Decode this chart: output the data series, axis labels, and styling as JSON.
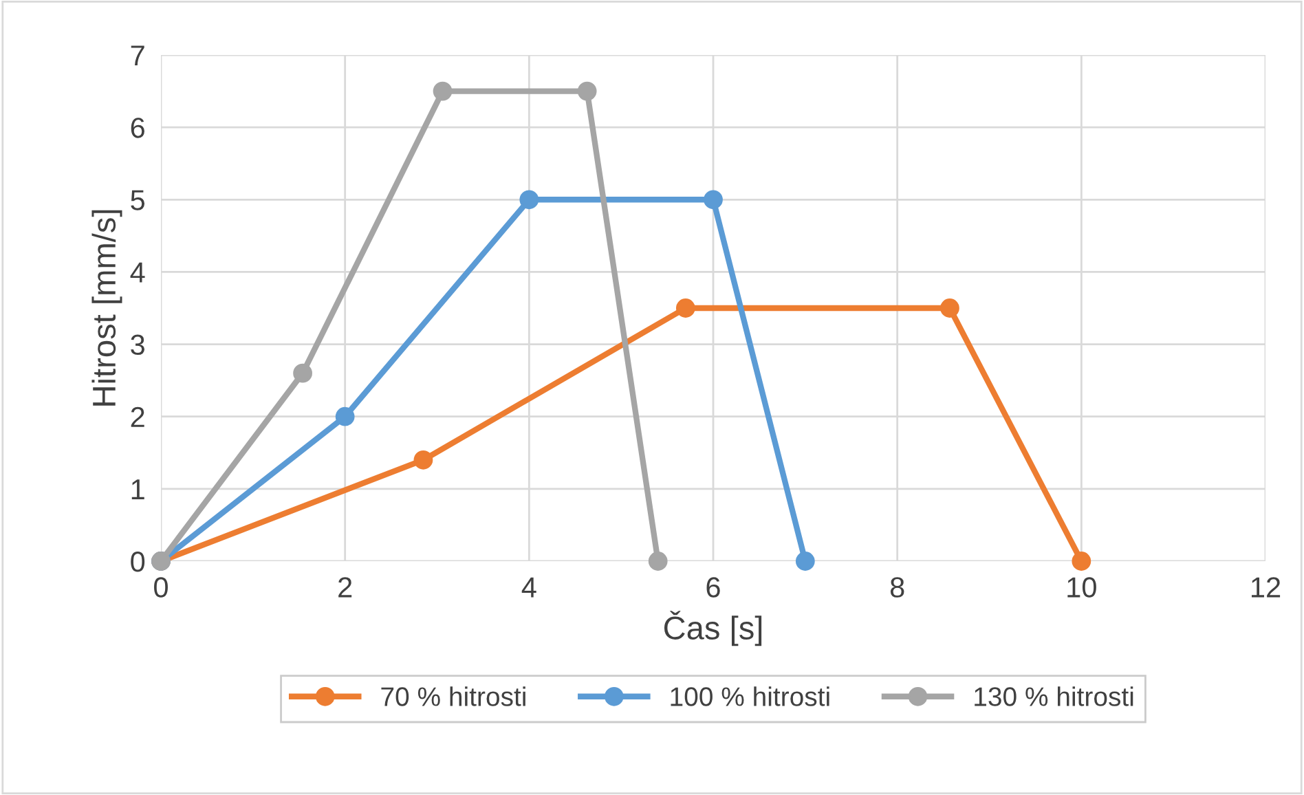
{
  "chart_data": {
    "type": "line",
    "xlabel": "Čas [s]",
    "ylabel": "Hitrost [mm/s]",
    "xlim": [
      0,
      12
    ],
    "xticks": [
      0,
      2,
      4,
      6,
      8,
      10,
      12
    ],
    "ylim": [
      0,
      7
    ],
    "yticks": [
      0,
      1,
      2,
      3,
      4,
      5,
      6,
      7
    ],
    "grid": true,
    "legend": "bottom",
    "marker": "circle",
    "line_style": "solid",
    "series": [
      {
        "name": "70 % hitrosti",
        "color": "#ed7d31",
        "x": [
          0,
          2.85,
          5.7,
          8.57,
          10
        ],
        "values": [
          0,
          1.4,
          3.5,
          3.5,
          0
        ]
      },
      {
        "name": "100 % hitrosti",
        "color": "#5b9bd5",
        "x": [
          0,
          2,
          4,
          6,
          7
        ],
        "values": [
          0,
          2,
          5,
          5,
          0
        ]
      },
      {
        "name": "130 % hitrosti",
        "color": "#a5a5a5",
        "x": [
          0,
          1.54,
          3.06,
          4.63,
          5.4
        ],
        "values": [
          0,
          2.6,
          6.5,
          6.5,
          0
        ]
      }
    ]
  }
}
